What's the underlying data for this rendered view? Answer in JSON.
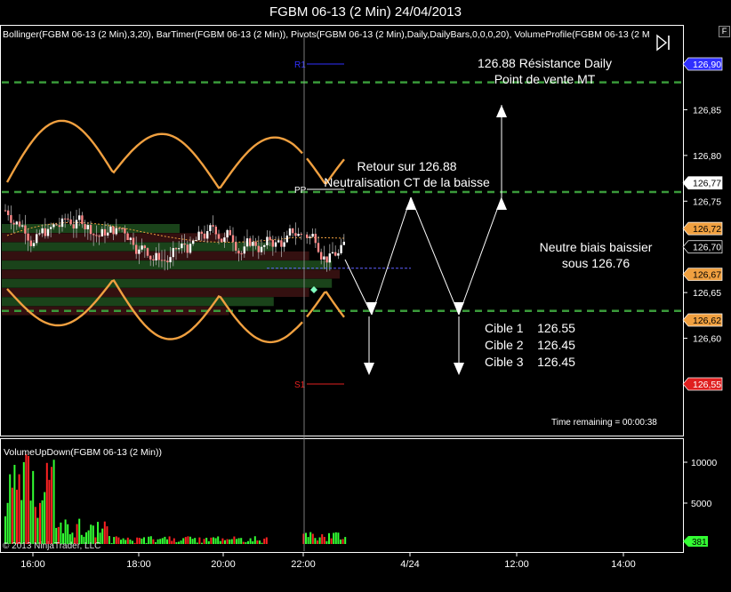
{
  "window": {
    "title": "FGBM 06-13 (2 Min)  24/04/2013"
  },
  "indicators_line": "Bollinger(FGBM 06-13 (2 Min),3,20), BarTimer(FGBM 06-13 (2 Min)), Pivots(FGBM 06-13 (2 Min),Daily,DailyBars,0,0,0,20), VolumeProfile(FGBM 06-13 (2 M",
  "buttons": {
    "f_label": "F"
  },
  "annotations": {
    "resistance": [
      "126.88 Résistance Daily",
      "Point de vente MT"
    ],
    "retour": [
      "Retour sur 126.88",
      "Neutralisation CT de la baisse"
    ],
    "neutre": [
      "Neutre biais baissier",
      "sous 126.76"
    ],
    "cibles": [
      "Cible 1    126.55",
      "Cible 2    126.45",
      "Cible 3    126.45"
    ]
  },
  "time_remaining": "Time remaining = 00:00:38",
  "volume_panel": {
    "label": "VolumeUpDown(FGBM 06-13 (2 Min))"
  },
  "copyright": "© 2013 NinjaTrader, LLC",
  "colors": {
    "background": "#000000",
    "up": "#33ff33",
    "down": "#ff2222",
    "bollinger": "#f0a040",
    "dash": "#3a9a3a"
  },
  "chart_data": [
    {
      "type": "candlestick",
      "panel": "price",
      "ylim": [
        126.52,
        126.92
      ],
      "y_ticks": [
        "126,90",
        "126,85",
        "126,80",
        "126,75",
        "126,70",
        "126,65",
        "126,60",
        "126,55"
      ],
      "price_markers": [
        {
          "label": "126,90",
          "color": "#3030ff",
          "text_color": "#ffffff"
        },
        {
          "label": "126,77",
          "color": "#ffffff",
          "text_color": "#000000"
        },
        {
          "label": "126,72",
          "color": "#f0a040",
          "text_color": "#000000"
        },
        {
          "label": "126,70",
          "color": "#000000",
          "text_color": "#ffffff"
        },
        {
          "label": "126,67",
          "color": "#f0a040",
          "text_color": "#000000"
        },
        {
          "label": "126,62",
          "color": "#f0a040",
          "text_color": "#000000"
        },
        {
          "label": "126,55",
          "color": "#e02020",
          "text_color": "#ffffff"
        }
      ],
      "pivots": [
        {
          "name": "R1",
          "value": 126.9
        },
        {
          "name": "PP",
          "value": 126.77
        },
        {
          "name": "S1",
          "value": 126.55
        }
      ],
      "horizontal_levels": [
        126.88,
        126.76,
        126.63
      ],
      "projection_levels": [
        126.88,
        126.76,
        126.63,
        126.55
      ],
      "x_ticks": [
        "16:00",
        "18:00",
        "20:00",
        "22:00",
        "4/24",
        "12:00",
        "14:00"
      ],
      "last_price": 126.7
    },
    {
      "type": "bar",
      "panel": "volume",
      "y_ticks": [
        "10000",
        "5000"
      ],
      "ylim": [
        0,
        12000
      ],
      "last_value_label": "381"
    }
  ]
}
